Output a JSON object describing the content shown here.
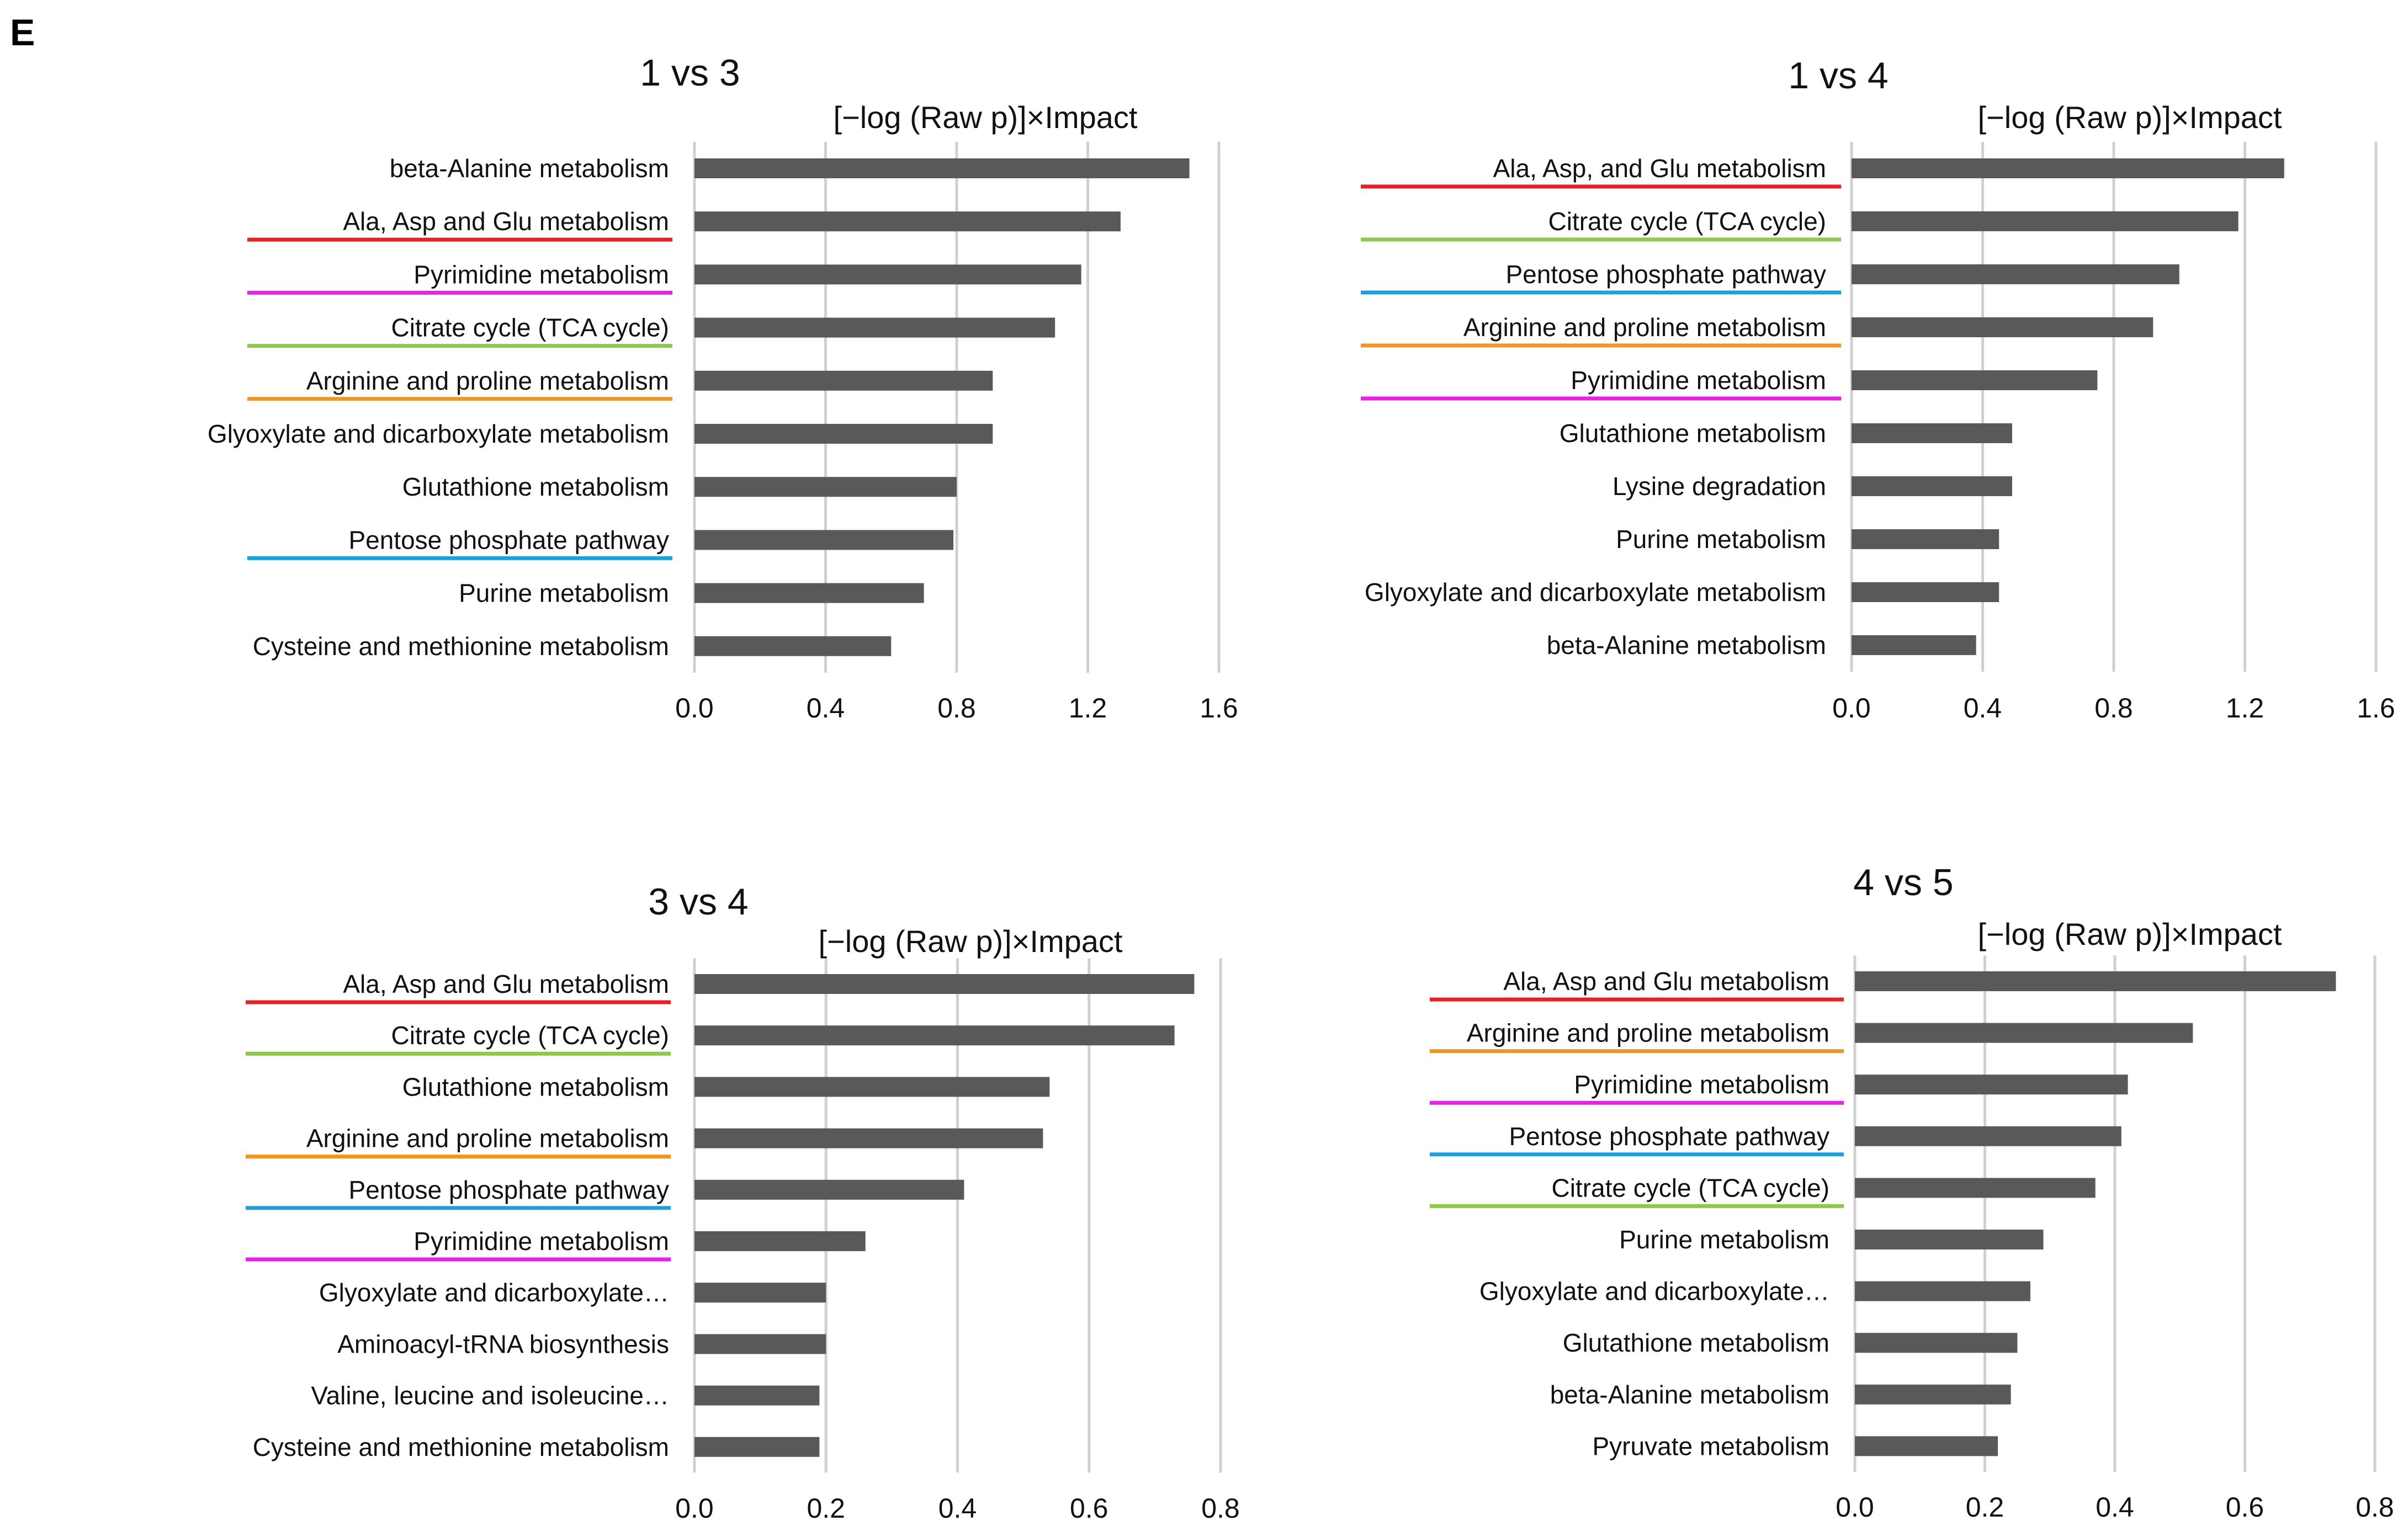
{
  "panel_label": "E",
  "colors": {
    "bar": "#595959",
    "gridline": "#d0d0d0",
    "red": "#ee1c25",
    "magenta": "#ee1cee",
    "green": "#8dc84a",
    "orange": "#f7941d",
    "blue": "#1ba1e2"
  },
  "chart_data": [
    {
      "type": "bar",
      "orientation": "horizontal",
      "title": "1 vs 3",
      "xlabel": "[−log (Raw p)]×Impact",
      "xlim": [
        0,
        1.6
      ],
      "xticks": [
        "0.0",
        "0.4",
        "0.8",
        "1.2",
        "1.6"
      ],
      "grid": true,
      "categories": [
        "beta-Alanine metabolism",
        "Ala, Asp and Glu metabolism",
        "Pyrimidine metabolism",
        "Citrate cycle (TCA cycle)",
        "Arginine and proline metabolism",
        "Glyoxylate and dicarboxylate metabolism",
        "Glutathione metabolism",
        "Pentose phosphate pathway",
        "Purine metabolism",
        "Cysteine and methionine metabolism"
      ],
      "values": [
        1.51,
        1.3,
        1.18,
        1.1,
        0.91,
        0.91,
        0.8,
        0.79,
        0.7,
        0.6
      ],
      "underline_colors": [
        "",
        "red",
        "magenta",
        "green",
        "orange",
        "",
        "",
        "blue",
        "",
        ""
      ]
    },
    {
      "type": "bar",
      "orientation": "horizontal",
      "title": "1 vs 4",
      "xlabel": "[−log (Raw p)]×Impact",
      "xlim": [
        0,
        1.6
      ],
      "xticks": [
        "0.0",
        "0.4",
        "0.8",
        "1.2",
        "1.6"
      ],
      "grid": true,
      "categories": [
        "Ala, Asp, and Glu metabolism",
        "Citrate cycle (TCA cycle)",
        "Pentose phosphate pathway",
        "Arginine and proline metabolism",
        "Pyrimidine metabolism",
        "Glutathione metabolism",
        "Lysine degradation",
        "Purine metabolism",
        "Glyoxylate and dicarboxylate metabolism",
        "beta-Alanine metabolism"
      ],
      "values": [
        1.32,
        1.18,
        1.0,
        0.92,
        0.75,
        0.49,
        0.49,
        0.45,
        0.45,
        0.38
      ],
      "underline_colors": [
        "red",
        "green",
        "blue",
        "orange",
        "magenta",
        "",
        "",
        "",
        "",
        ""
      ]
    },
    {
      "type": "bar",
      "orientation": "horizontal",
      "title": "3 vs 4",
      "xlabel": "[−log (Raw p)]×Impact",
      "xlim": [
        0,
        0.8
      ],
      "xticks": [
        "0.0",
        "0.2",
        "0.4",
        "0.6",
        "0.8"
      ],
      "grid": true,
      "categories": [
        "Ala, Asp and Glu metabolism",
        "Citrate cycle (TCA cycle)",
        "Glutathione metabolism",
        "Arginine and proline metabolism",
        "Pentose phosphate pathway",
        "Pyrimidine metabolism",
        "Glyoxylate and dicarboxylate…",
        "Aminoacyl-tRNA biosynthesis",
        "Valine, leucine and isoleucine…",
        "Cysteine and methionine metabolism"
      ],
      "values": [
        0.76,
        0.73,
        0.54,
        0.53,
        0.41,
        0.26,
        0.2,
        0.2,
        0.19,
        0.19
      ],
      "underline_colors": [
        "red",
        "green",
        "",
        "orange",
        "blue",
        "magenta",
        "",
        "",
        "",
        ""
      ]
    },
    {
      "type": "bar",
      "orientation": "horizontal",
      "title": "4 vs 5",
      "xlabel": "[−log (Raw p)]×Impact",
      "xlim": [
        0,
        0.8
      ],
      "xticks": [
        "0.0",
        "0.2",
        "0.4",
        "0.6",
        "0.8"
      ],
      "grid": true,
      "categories": [
        "Ala, Asp and Glu metabolism",
        "Arginine and proline metabolism",
        "Pyrimidine metabolism",
        "Pentose phosphate pathway",
        "Citrate cycle (TCA cycle)",
        "Purine metabolism",
        "Glyoxylate and dicarboxylate…",
        "Glutathione metabolism",
        "beta-Alanine metabolism",
        "Pyruvate metabolism"
      ],
      "values": [
        0.74,
        0.52,
        0.42,
        0.41,
        0.37,
        0.29,
        0.27,
        0.25,
        0.24,
        0.22
      ],
      "underline_colors": [
        "red",
        "orange",
        "magenta",
        "blue",
        "green",
        "",
        "",
        "",
        "",
        ""
      ]
    }
  ]
}
